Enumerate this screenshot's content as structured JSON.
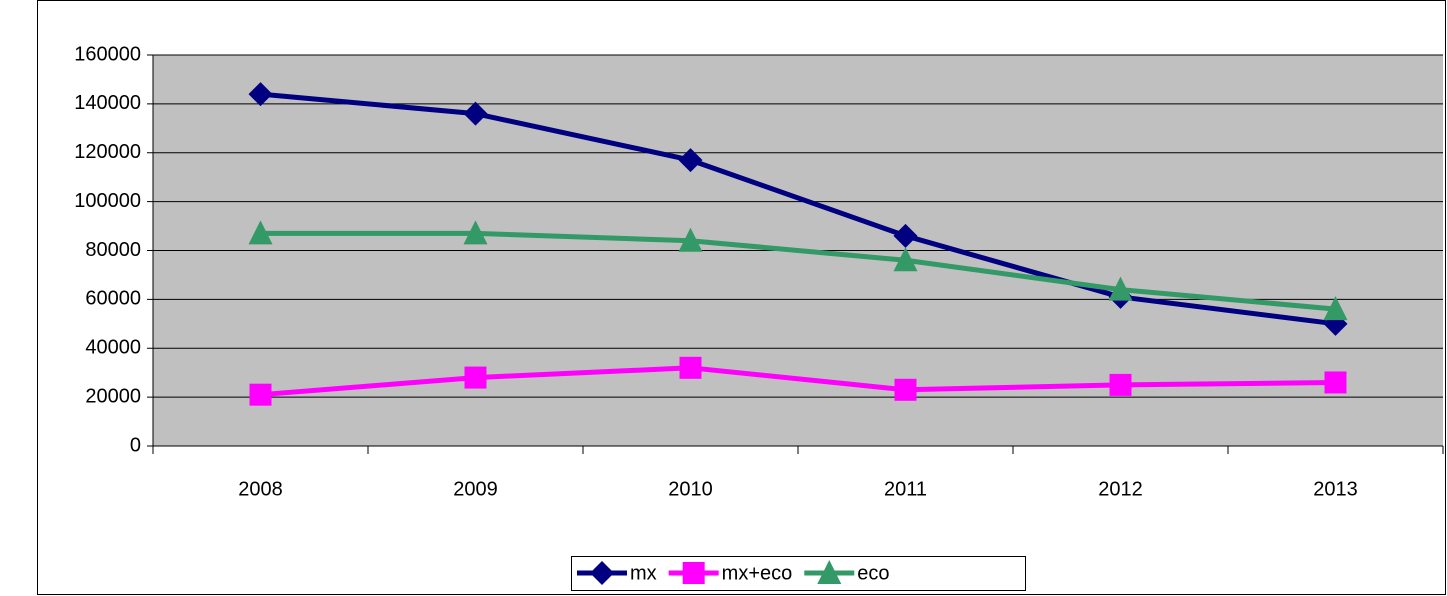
{
  "chart_data": {
    "type": "line",
    "categories": [
      "2008",
      "2009",
      "2010",
      "2011",
      "2012",
      "2013"
    ],
    "series": [
      {
        "name": "mx",
        "color": "#000080",
        "marker": "diamond",
        "values": [
          144000,
          136000,
          117000,
          86000,
          61000,
          50000
        ]
      },
      {
        "name": "mx+eco",
        "color": "#ff00ff",
        "marker": "square",
        "values": [
          21000,
          28000,
          32000,
          23000,
          25000,
          26000
        ]
      },
      {
        "name": "eco",
        "color": "#339966",
        "marker": "triangle",
        "values": [
          87000,
          87000,
          84000,
          76000,
          64000,
          56000
        ]
      }
    ],
    "ylim": [
      0,
      160000
    ],
    "yticks": [
      0,
      20000,
      40000,
      60000,
      80000,
      100000,
      120000,
      140000,
      160000
    ],
    "grid": true,
    "plot_background": "#c0c0c0",
    "legend": "bottom"
  }
}
